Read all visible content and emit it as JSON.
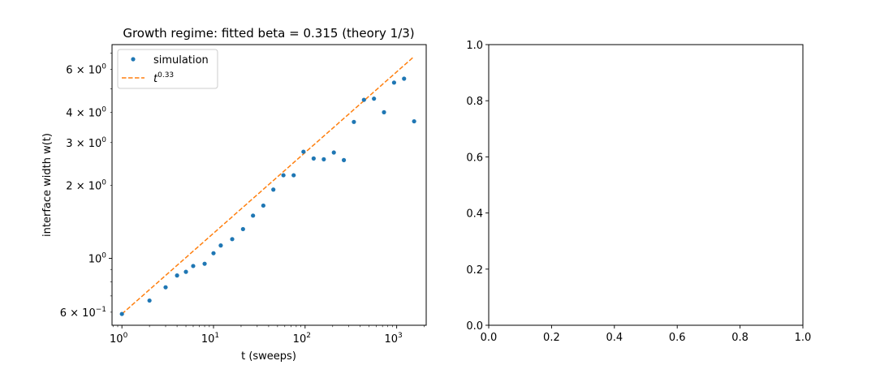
{
  "chart_data": [
    {
      "type": "scatter",
      "title": "Growth regime: fitted beta = 0.315 (theory 1/3)",
      "xlabel": "t (sweeps)",
      "ylabel": "interface width w(t)",
      "xscale": "log",
      "yscale": "log",
      "xlim": [
        0.78,
        2100
      ],
      "ylim": [
        0.53,
        7.6
      ],
      "grid": false,
      "legend_position": "upper-left",
      "x_ticks": [
        {
          "value": 1,
          "base": "10",
          "exp": "0"
        },
        {
          "value": 10,
          "base": "10",
          "exp": "1"
        },
        {
          "value": 100,
          "base": "10",
          "exp": "2"
        },
        {
          "value": 1000,
          "base": "10",
          "exp": "3"
        }
      ],
      "y_ticks": [
        {
          "value": 0.6,
          "mantissa": "6",
          "times": "×",
          "base": "10",
          "exp": "−1"
        },
        {
          "value": 1,
          "mantissa": "",
          "times": "",
          "base": "10",
          "exp": "0"
        },
        {
          "value": 2,
          "mantissa": "2",
          "times": "×",
          "base": "10",
          "exp": "0"
        },
        {
          "value": 3,
          "mantissa": "3",
          "times": "×",
          "base": "10",
          "exp": "0"
        },
        {
          "value": 4,
          "mantissa": "4",
          "times": "×",
          "base": "10",
          "exp": "0"
        },
        {
          "value": 6,
          "mantissa": "6",
          "times": "×",
          "base": "10",
          "exp": "0"
        }
      ],
      "series": [
        {
          "name": "simulation",
          "kind": "scatter",
          "color": "#1f77b4",
          "x": [
            1,
            2,
            3,
            4,
            5,
            6,
            8,
            10,
            12,
            16,
            21,
            27,
            35,
            45,
            58,
            75,
            96,
            124,
            160,
            206,
            265,
            341,
            439,
            565,
            727,
            936,
            1204,
            1550
          ],
          "y": [
            0.59,
            0.67,
            0.76,
            0.85,
            0.88,
            0.93,
            0.95,
            1.05,
            1.13,
            1.2,
            1.32,
            1.5,
            1.65,
            1.92,
            2.2,
            2.2,
            2.75,
            2.58,
            2.56,
            2.73,
            2.54,
            3.65,
            4.5,
            4.55,
            4.0,
            5.3,
            5.5,
            3.67
          ]
        },
        {
          "name": "t",
          "name_exponent": "0.33",
          "kind": "line",
          "style": "dashed",
          "color": "#ff7f0e",
          "x": [
            1,
            1550
          ],
          "y": [
            0.59,
            6.79
          ]
        }
      ]
    },
    {
      "type": "scatter",
      "title": "",
      "xlim": [
        0,
        1
      ],
      "ylim": [
        0,
        1
      ],
      "x_ticks": [
        "0.0",
        "0.2",
        "0.4",
        "0.6",
        "0.8",
        "1.0"
      ],
      "y_ticks": [
        "0.0",
        "0.2",
        "0.4",
        "0.6",
        "0.8",
        "1.0"
      ],
      "series": []
    }
  ]
}
